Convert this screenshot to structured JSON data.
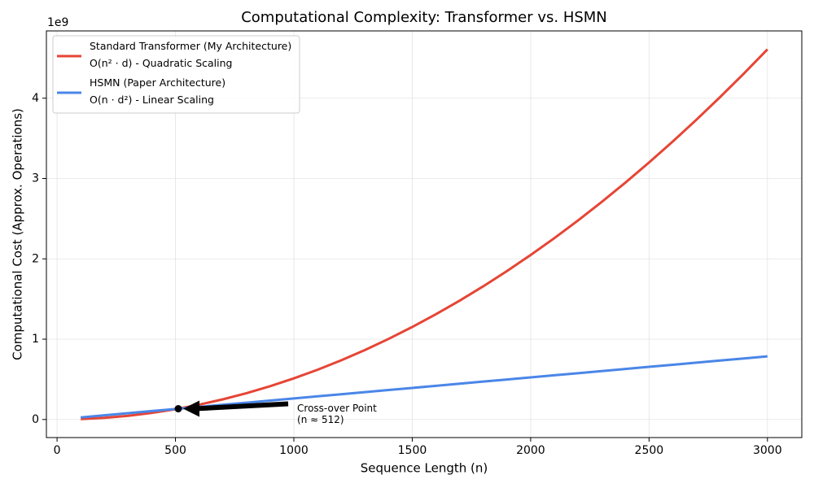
{
  "chart_data": {
    "type": "line",
    "title": "Computational Complexity: Transformer vs. HSMN",
    "xlabel": "Sequence Length (n)",
    "ylabel": "Computational Cost (Approx. Operations)",
    "y_offset_label": "1e9",
    "x": [
      100,
      200,
      300,
      400,
      500,
      600,
      700,
      800,
      900,
      1000,
      1100,
      1200,
      1300,
      1400,
      1500,
      1600,
      1700,
      1800,
      1900,
      2000,
      2100,
      2200,
      2300,
      2400,
      2500,
      2600,
      2700,
      2800,
      2900,
      3000
    ],
    "series": [
      {
        "name": "Standard Transformer (My Architecture)\nO(n² · d) - Quadratic Scaling",
        "color": "#e64535",
        "values": [
          0.0051,
          0.0205,
          0.0461,
          0.0819,
          0.128,
          0.1843,
          0.2509,
          0.3277,
          0.4147,
          0.512,
          0.6195,
          0.7373,
          0.8653,
          1.0035,
          1.152,
          1.3107,
          1.4797,
          1.6589,
          1.8483,
          2.048,
          2.2579,
          2.4781,
          2.7085,
          2.9491,
          3.2,
          3.4611,
          3.7325,
          4.0141,
          4.3059,
          4.608
        ]
      },
      {
        "name": "HSMN (Paper Architecture)\nO(n · d²) - Linear Scaling",
        "color": "#4a86e8",
        "values": [
          0.0262,
          0.0524,
          0.0786,
          0.1049,
          0.1311,
          0.1573,
          0.1835,
          0.2097,
          0.2359,
          0.2621,
          0.2884,
          0.3146,
          0.3408,
          0.367,
          0.3932,
          0.4194,
          0.4456,
          0.4719,
          0.4981,
          0.5243,
          0.5505,
          0.5767,
          0.6029,
          0.6291,
          0.6554,
          0.6816,
          0.7078,
          0.734,
          0.7602,
          0.7864
        ]
      }
    ],
    "crossover": {
      "x": 512,
      "y": 0.1342,
      "label": "Cross-over Point\n(n ≈ 512)"
    },
    "xlim": [
      -45,
      3145
    ],
    "ylim": [
      -0.225,
      4.838
    ],
    "xticks": [
      0,
      500,
      1000,
      1500,
      2000,
      2500,
      3000
    ],
    "yticks": [
      0,
      1,
      2,
      3,
      4
    ],
    "grid": true,
    "legend": "upper left"
  }
}
